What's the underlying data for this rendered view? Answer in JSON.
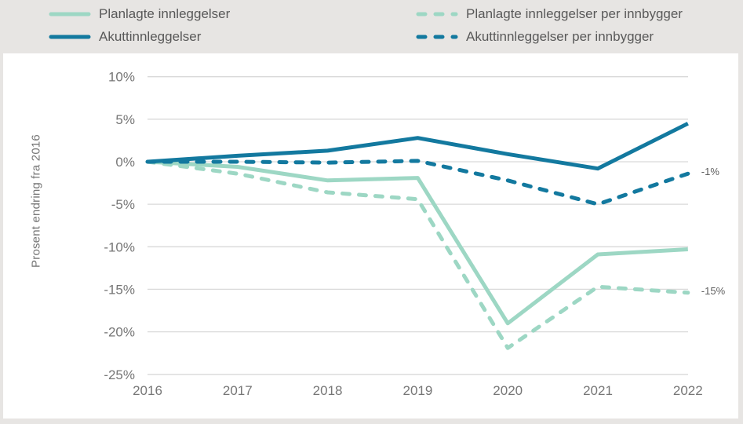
{
  "chart_data": {
    "type": "line",
    "title": "",
    "ylabel": "Prosent endring fra 2016",
    "xlabel": "",
    "categories": [
      "2016",
      "2017",
      "2018",
      "2019",
      "2020",
      "2021",
      "2022"
    ],
    "yticks": [
      10,
      5,
      0,
      -5,
      -10,
      -15,
      -20,
      -25
    ],
    "ytick_labels": [
      "10%",
      "5%",
      "0%",
      "-5%",
      "-10%",
      "-15%",
      "-20%",
      "-25%"
    ],
    "ylim": [
      -25,
      10
    ],
    "grid": true,
    "legend_position": "top",
    "colors": {
      "planned": "#9dd7c4",
      "acute": "#13799f",
      "gridline": "#d9d9d9",
      "background": "#e7e5e3",
      "plot_background": "#ffffff",
      "text": "#595959"
    },
    "series": [
      {
        "name": "Planlagte innleggelser",
        "color": "#9dd7c4",
        "dashed": false,
        "values": [
          0,
          -0.6,
          -2.2,
          -1.9,
          -19.0,
          -10.9,
          -10.3
        ],
        "end_label": ""
      },
      {
        "name": "Planlagte innleggelser per innbygger",
        "color": "#9dd7c4",
        "dashed": true,
        "values": [
          0,
          -1.4,
          -3.6,
          -4.4,
          -21.9,
          -14.7,
          -15.4
        ],
        "end_label": "-15%"
      },
      {
        "name": "Akuttinnleggelser",
        "color": "#13799f",
        "dashed": false,
        "values": [
          0,
          0.7,
          1.3,
          2.8,
          0.9,
          -0.8,
          4.5
        ],
        "end_label": ""
      },
      {
        "name": "Akuttinnleggelser per innbygger",
        "color": "#13799f",
        "dashed": true,
        "values": [
          0,
          0.0,
          -0.1,
          0.1,
          -2.2,
          -5.0,
          -1.4
        ],
        "end_label": "-1%"
      }
    ]
  }
}
